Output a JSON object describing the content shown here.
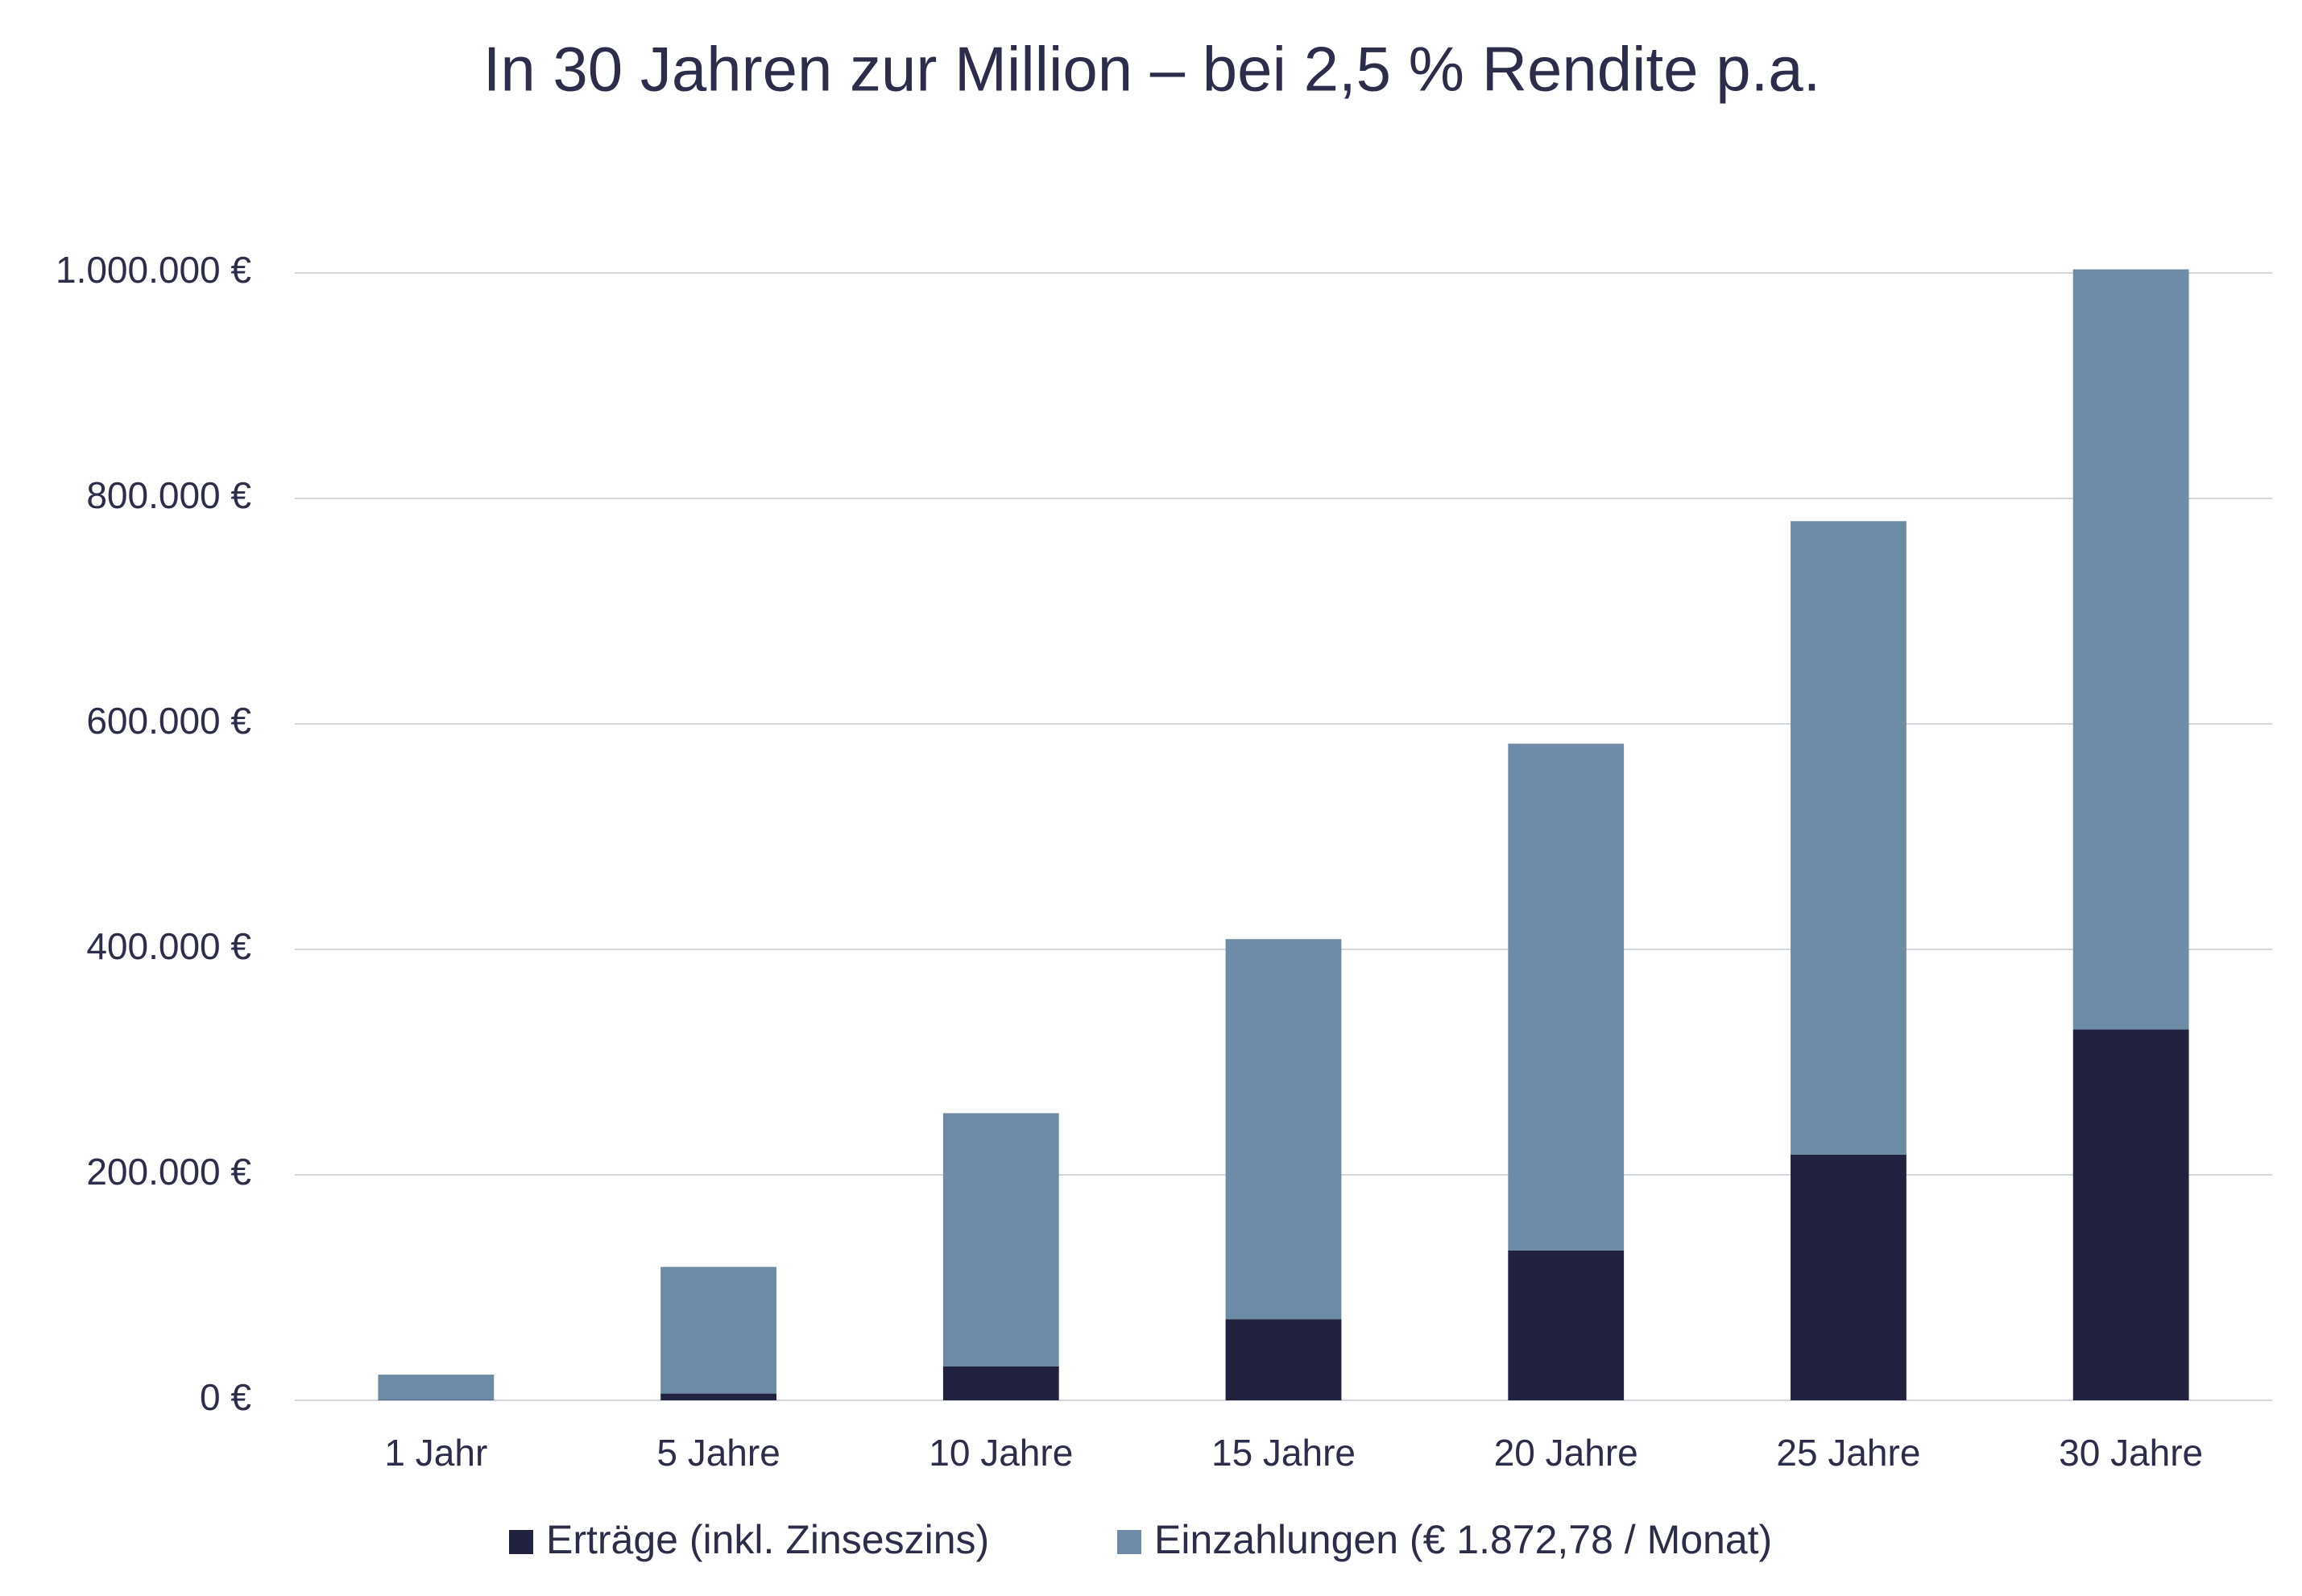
{
  "chart_data": {
    "type": "stacked_bar",
    "title": "In 30 Jahren zur Million – bei 2,5 % Rendite p.a.",
    "categories": [
      "1 Jahr",
      "5 Jahre",
      "10 Jahre",
      "15 Jahre",
      "20 Jahre",
      "25 Jahre",
      "30 Jahre"
    ],
    "series": [
      {
        "name": "Erträge (inkl. Zinseszins)",
        "color": "#20223f",
        "values": [
          300,
          6000,
          30000,
          72000,
          133000,
          218000,
          329000
        ]
      },
      {
        "name": "Einzahlungen (€ 1.872,78 / Monat)",
        "color": "#6d8ba7",
        "values": [
          22473,
          112367,
          224734,
          337100,
          449467,
          561834,
          674200
        ]
      }
    ],
    "ylim": [
      0,
      1000000
    ],
    "yticks": [
      {
        "value": 0,
        "label": "0 €"
      },
      {
        "value": 200000,
        "label": "200.000 €"
      },
      {
        "value": 400000,
        "label": "400.000 €"
      },
      {
        "value": 600000,
        "label": "600.000 €"
      },
      {
        "value": 800000,
        "label": "800.000 €"
      },
      {
        "value": 1000000,
        "label": "1.000.000 €"
      }
    ],
    "grid": true,
    "legend": "bottom"
  }
}
